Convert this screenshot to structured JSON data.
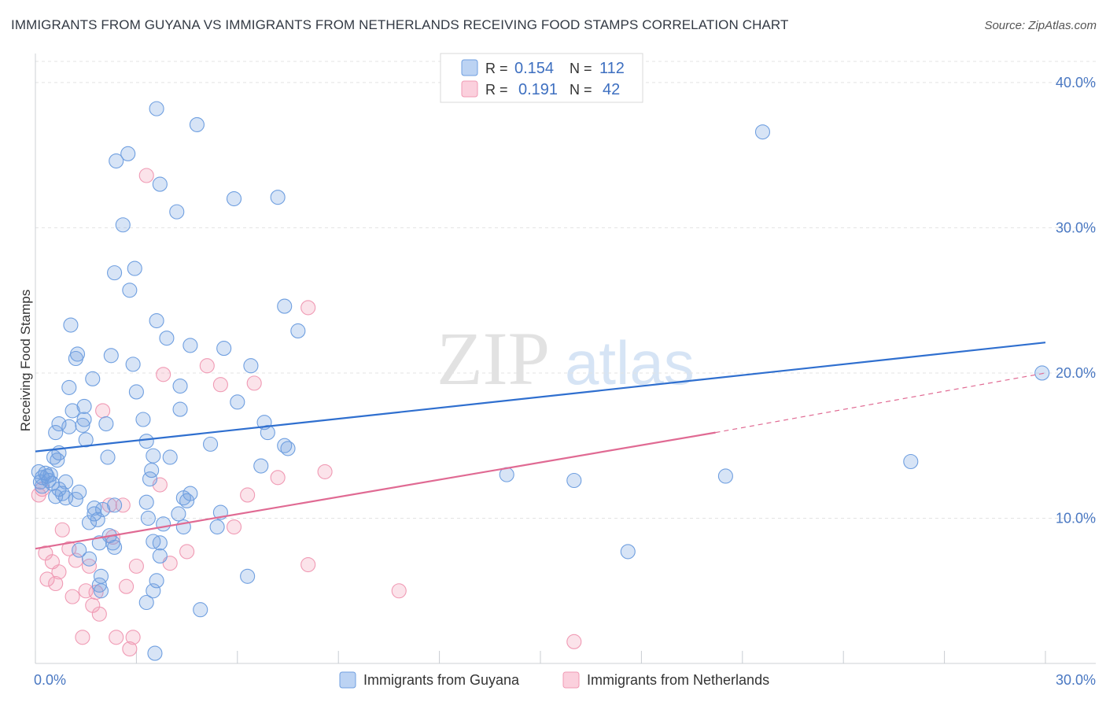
{
  "title": "IMMIGRANTS FROM GUYANA VS IMMIGRANTS FROM NETHERLANDS RECEIVING FOOD STAMPS CORRELATION CHART",
  "source": "Source: ZipAtlas.com",
  "watermark": {
    "zip": "ZIP",
    "atlas": "atlas"
  },
  "legend": {
    "guyana": {
      "r_label": "R =",
      "r_value": "0.154",
      "n_label": "N =",
      "n_value": "112"
    },
    "netherlands": {
      "r_label": "R =",
      "r_value": "0.191",
      "n_label": "N =",
      "n_value": "42"
    }
  },
  "chart_data": {
    "type": "scatter",
    "title": "IMMIGRANTS FROM GUYANA VS IMMIGRANTS FROM NETHERLANDS RECEIVING FOOD STAMPS CORRELATION CHART",
    "xlabel": "",
    "ylabel": "Receiving Food Stamps",
    "xlim": [
      0,
      30
    ],
    "ylim": [
      0,
      42
    ],
    "x_tick_labels": [
      "0.0%",
      "30.0%"
    ],
    "y_ticks": [
      10,
      20,
      30,
      40
    ],
    "y_tick_labels": [
      "10.0%",
      "20.0%",
      "30.0%",
      "40.0%"
    ],
    "legend_placement": "top-center",
    "colors": {
      "guyana": "#6f9fe0",
      "guyana_line": "#2f6fcf",
      "netherlands": "#f09ab4",
      "netherlands_line": "#e06a93"
    },
    "series": [
      {
        "name": "Immigrants from Guyana",
        "trend": {
          "x": [
            0,
            30
          ],
          "y": [
            14.6,
            22.1
          ],
          "style": "solid"
        },
        "points": [
          [
            0.1,
            13.2
          ],
          [
            0.2,
            12.8
          ],
          [
            0.2,
            12.2
          ],
          [
            0.3,
            13.1
          ],
          [
            0.35,
            12.9
          ],
          [
            0.4,
            12.6
          ],
          [
            0.5,
            12.4
          ],
          [
            0.45,
            13.0
          ],
          [
            0.6,
            11.5
          ],
          [
            0.7,
            12.0
          ],
          [
            0.8,
            11.7
          ],
          [
            0.9,
            11.4
          ],
          [
            0.55,
            14.2
          ],
          [
            0.7,
            14.5
          ],
          [
            0.65,
            14.0
          ],
          [
            0.9,
            12.5
          ],
          [
            0.6,
            15.9
          ],
          [
            0.7,
            16.5
          ],
          [
            1.0,
            16.3
          ],
          [
            1.4,
            16.4
          ],
          [
            1.1,
            17.4
          ],
          [
            1.45,
            17.7
          ],
          [
            1.45,
            16.8
          ],
          [
            1.5,
            15.4
          ],
          [
            1.0,
            19.0
          ],
          [
            1.2,
            21.0
          ],
          [
            1.25,
            21.3
          ],
          [
            1.7,
            19.6
          ],
          [
            1.05,
            23.3
          ],
          [
            1.3,
            11.8
          ],
          [
            1.2,
            11.3
          ],
          [
            1.6,
            9.7
          ],
          [
            1.75,
            10.3
          ],
          [
            1.75,
            10.7
          ],
          [
            1.85,
            9.9
          ],
          [
            2.0,
            10.6
          ],
          [
            1.9,
            8.3
          ],
          [
            1.6,
            7.2
          ],
          [
            1.3,
            7.8
          ],
          [
            1.9,
            5.4
          ],
          [
            1.95,
            5.0
          ],
          [
            1.95,
            6.0
          ],
          [
            2.2,
            8.8
          ],
          [
            2.35,
            8.0
          ],
          [
            2.3,
            8.3
          ],
          [
            2.35,
            10.9
          ],
          [
            2.15,
            14.2
          ],
          [
            2.1,
            16.5
          ],
          [
            2.25,
            21.2
          ],
          [
            2.4,
            34.6
          ],
          [
            2.6,
            30.2
          ],
          [
            2.35,
            26.9
          ],
          [
            2.75,
            35.1
          ],
          [
            2.8,
            25.7
          ],
          [
            2.9,
            20.6
          ],
          [
            2.95,
            27.2
          ],
          [
            3.0,
            18.7
          ],
          [
            3.3,
            15.3
          ],
          [
            3.2,
            16.8
          ],
          [
            3.5,
            14.3
          ],
          [
            3.45,
            13.3
          ],
          [
            3.4,
            12.7
          ],
          [
            3.6,
            23.6
          ],
          [
            3.6,
            38.2
          ],
          [
            3.5,
            8.4
          ],
          [
            3.7,
            8.3
          ],
          [
            3.3,
            11.1
          ],
          [
            3.35,
            10.0
          ],
          [
            3.5,
            5.0
          ],
          [
            3.6,
            5.7
          ],
          [
            3.7,
            7.4
          ],
          [
            3.3,
            4.2
          ],
          [
            3.55,
            0.7
          ],
          [
            3.7,
            33.0
          ],
          [
            3.9,
            22.4
          ],
          [
            3.8,
            9.6
          ],
          [
            4.0,
            14.2
          ],
          [
            4.2,
            31.1
          ],
          [
            4.3,
            17.5
          ],
          [
            4.3,
            19.1
          ],
          [
            4.25,
            10.3
          ],
          [
            4.4,
            9.4
          ],
          [
            4.4,
            11.4
          ],
          [
            4.5,
            11.2
          ],
          [
            4.6,
            11.7
          ],
          [
            4.6,
            21.9
          ],
          [
            4.8,
            37.1
          ],
          [
            4.9,
            3.7
          ],
          [
            5.2,
            15.1
          ],
          [
            5.6,
            21.7
          ],
          [
            5.4,
            9.4
          ],
          [
            5.5,
            10.4
          ],
          [
            5.9,
            32.0
          ],
          [
            6.0,
            18.0
          ],
          [
            6.3,
            6.0
          ],
          [
            6.4,
            20.5
          ],
          [
            6.7,
            13.6
          ],
          [
            6.8,
            16.6
          ],
          [
            6.9,
            15.9
          ],
          [
            7.2,
            32.1
          ],
          [
            7.4,
            24.6
          ],
          [
            7.4,
            15.0
          ],
          [
            7.5,
            14.8
          ],
          [
            7.8,
            22.9
          ],
          [
            14.0,
            13.0
          ],
          [
            16.0,
            12.6
          ],
          [
            17.6,
            7.7
          ],
          [
            20.5,
            12.9
          ],
          [
            21.6,
            36.6
          ],
          [
            26.0,
            13.9
          ],
          [
            29.9,
            20.0
          ],
          [
            0.15,
            12.5
          ]
        ]
      },
      {
        "name": "Immigrants from Netherlands",
        "trend": {
          "x": [
            0,
            20.2
          ],
          "y": [
            7.9,
            15.9
          ],
          "style": "solid",
          "extension": {
            "x": [
              20.2,
              30
            ],
            "y": [
              15.9,
              20.0
            ],
            "style": "dashed"
          }
        },
        "points": [
          [
            0.1,
            11.6
          ],
          [
            0.2,
            12.0
          ],
          [
            0.3,
            7.6
          ],
          [
            0.35,
            5.8
          ],
          [
            0.5,
            7.0
          ],
          [
            0.6,
            5.5
          ],
          [
            0.7,
            6.3
          ],
          [
            0.8,
            9.2
          ],
          [
            1.0,
            7.9
          ],
          [
            1.1,
            4.6
          ],
          [
            1.2,
            7.1
          ],
          [
            1.4,
            1.8
          ],
          [
            1.5,
            5.0
          ],
          [
            1.6,
            6.7
          ],
          [
            1.7,
            4.0
          ],
          [
            1.8,
            4.9
          ],
          [
            1.9,
            3.4
          ],
          [
            2.0,
            17.4
          ],
          [
            2.2,
            10.9
          ],
          [
            2.3,
            8.7
          ],
          [
            2.4,
            1.8
          ],
          [
            2.6,
            10.9
          ],
          [
            2.7,
            5.3
          ],
          [
            2.8,
            1.0
          ],
          [
            2.9,
            1.8
          ],
          [
            3.0,
            6.7
          ],
          [
            3.3,
            33.6
          ],
          [
            3.7,
            12.3
          ],
          [
            3.8,
            19.9
          ],
          [
            4.0,
            6.9
          ],
          [
            4.5,
            7.7
          ],
          [
            5.1,
            20.5
          ],
          [
            5.5,
            19.2
          ],
          [
            5.9,
            9.4
          ],
          [
            6.3,
            11.6
          ],
          [
            6.5,
            19.3
          ],
          [
            7.2,
            12.8
          ],
          [
            8.1,
            24.5
          ],
          [
            8.1,
            6.8
          ],
          [
            8.6,
            13.2
          ],
          [
            10.8,
            5.0
          ],
          [
            16.0,
            1.5
          ]
        ]
      }
    ]
  },
  "bottom_legend": [
    "Immigrants from Guyana",
    "Immigrants from Netherlands"
  ]
}
